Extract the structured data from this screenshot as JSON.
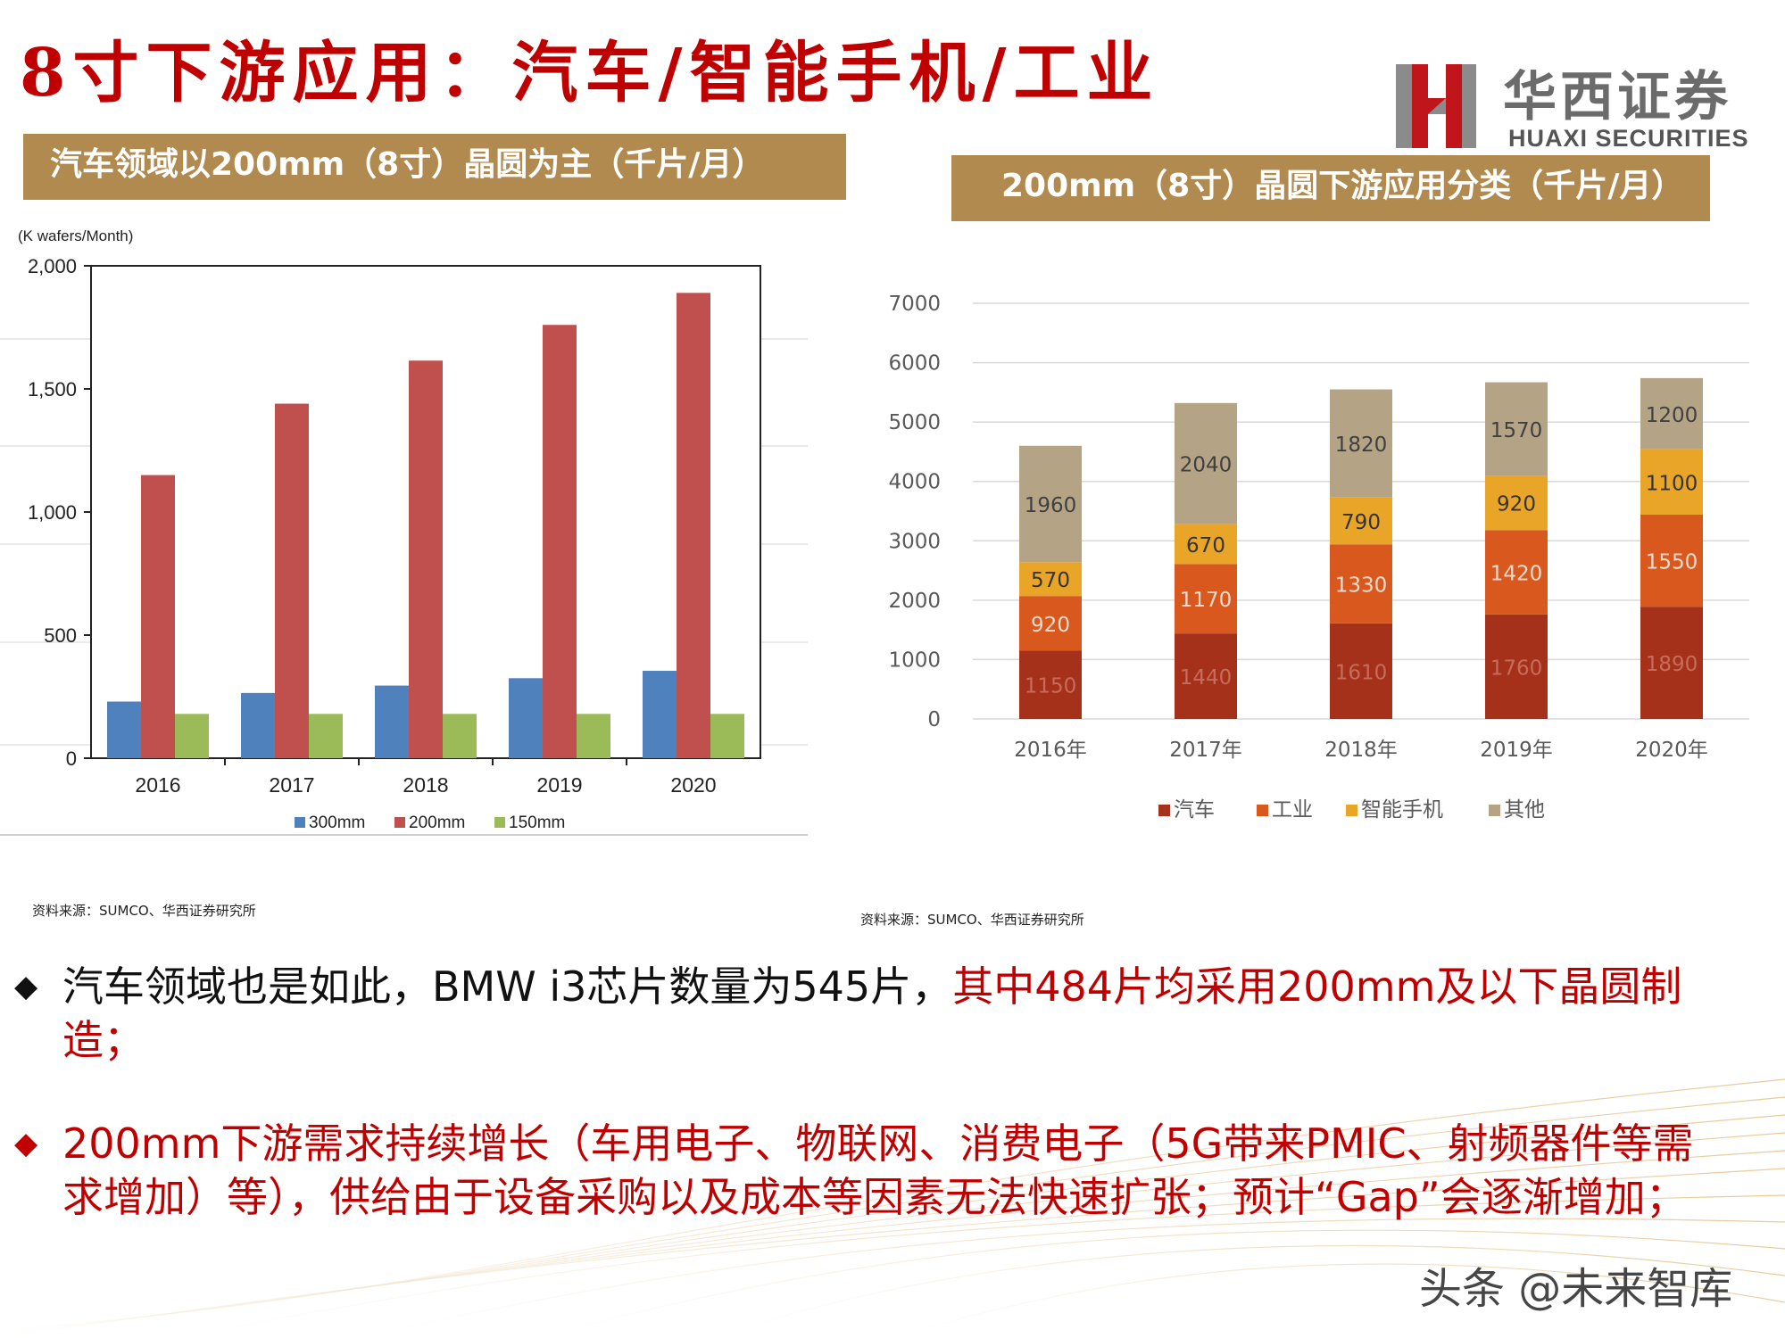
{
  "slide": {
    "title": "8寸下游应用：汽车/智能手机/工业"
  },
  "logo": {
    "name_cn": "华西证券",
    "name_en": "HUAXI SECURITIES"
  },
  "left_panel": {
    "header": "汽车领域以200mm（8寸）晶圆为主（千片/月）",
    "source": "资料来源：SUMCO、华西证券研究所"
  },
  "right_panel": {
    "header": "200mm（8寸）晶圆下游应用分类（千片/月）",
    "source": "资料来源：SUMCO、华西证券研究所"
  },
  "bullets": [
    {
      "black_text": "汽车领域也是如此，BMW i3芯片数量为545片，",
      "red_text": "其中484片均采用200mm及以下晶圆制造；"
    },
    {
      "black_text": "",
      "red_text": "200mm下游需求持续增长（车用电子、物联网、消费电子（5G带来PMIC、射频器件等需求增加）等），供给由于设备采购以及成本等因素无法快速扩张；预计“Gap”会逐渐增加；"
    }
  ],
  "watermark": "头条 @未来智库",
  "colors": {
    "title_red": "#c00000",
    "header_gold": "#b08a4e",
    "s300": "#4f81bd",
    "s200": "#c0504d",
    "s150": "#9bbb59",
    "auto": "#a5311a",
    "industry": "#d9581e",
    "phone": "#e9a528",
    "other": "#b5a386"
  },
  "chart_data": [
    {
      "type": "bar",
      "unit_label": "(K wafers/Month)",
      "categories": [
        "2016",
        "2017",
        "2018",
        "2019",
        "2020"
      ],
      "series": [
        {
          "name": "300mm",
          "values": [
            230,
            265,
            295,
            325,
            355
          ]
        },
        {
          "name": "200mm",
          "values": [
            1150,
            1440,
            1615,
            1760,
            1890
          ]
        },
        {
          "name": "150mm",
          "values": [
            180,
            180,
            180,
            180,
            180
          ]
        }
      ],
      "ylim": [
        0,
        2000
      ],
      "yticks": [
        "0",
        "500",
        "1,000",
        "1,500",
        "2,000"
      ],
      "ytick_values": [
        0,
        500,
        1000,
        1500,
        2000
      ],
      "legend_position": "bottom",
      "grid": false
    },
    {
      "type": "bar",
      "stacked": true,
      "categories": [
        "2016年",
        "2017年",
        "2018年",
        "2019年",
        "2020年"
      ],
      "series": [
        {
          "name": "汽车",
          "values": [
            1150,
            1440,
            1610,
            1760,
            1890
          ]
        },
        {
          "name": "工业",
          "values": [
            920,
            1170,
            1330,
            1420,
            1550
          ]
        },
        {
          "name": "智能手机",
          "values": [
            570,
            670,
            790,
            920,
            1100
          ]
        },
        {
          "name": "其他",
          "values": [
            1960,
            2040,
            1820,
            1570,
            1200
          ]
        }
      ],
      "ylim": [
        0,
        7000
      ],
      "yticks": [
        "0",
        "1000",
        "2000",
        "3000",
        "4000",
        "5000",
        "6000",
        "7000"
      ],
      "ytick_values": [
        0,
        1000,
        2000,
        3000,
        4000,
        5000,
        6000,
        7000
      ],
      "data_labels": true,
      "legend_position": "bottom",
      "grid": true
    }
  ]
}
